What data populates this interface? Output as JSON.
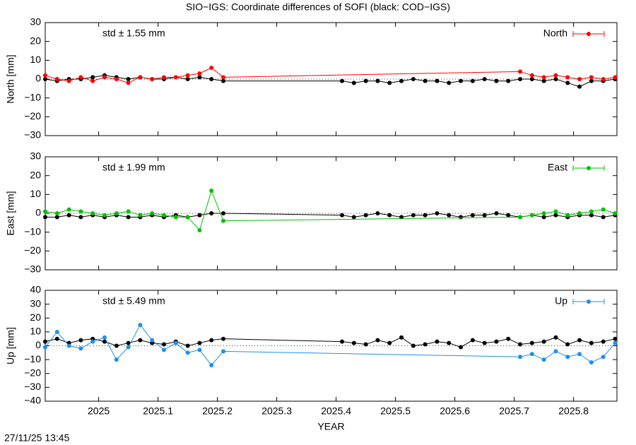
{
  "title": "SIO−IGS: Coordinate differences of SOFI (black: COD−IGS)",
  "timestamp": "27/11/25 13:45",
  "chart_data": [
    {
      "type": "line",
      "ylabel": "North [mm]",
      "annotation": "std ± 1.55 mm",
      "xlim": [
        2024.91,
        2025.873
      ],
      "xticks": [
        2025,
        2025.1,
        2025.2,
        2025.3,
        2025.4,
        2025.5,
        2025.6,
        2025.7,
        2025.8
      ],
      "ylim": [
        -30,
        30
      ],
      "yticks": [
        {
          "value": -30,
          "label": "−30"
        },
        {
          "value": -20,
          "label": "−20"
        },
        {
          "value": -10,
          "label": "−10"
        },
        0,
        10,
        20,
        30
      ],
      "series": [
        {
          "name": "North",
          "color": "#ff0000",
          "x": [
            2024.91,
            2024.93,
            2024.95,
            2024.97,
            2024.99,
            2025.01,
            2025.03,
            2025.05,
            2025.07,
            2025.09,
            2025.11,
            2025.13,
            2025.15,
            2025.17,
            2025.19,
            2025.21,
            2025.71,
            2025.73,
            2025.75,
            2025.77,
            2025.79,
            2025.81,
            2025.83,
            2025.85,
            2025.87
          ],
          "values": [
            2,
            0,
            -1,
            1,
            -1,
            1,
            0,
            -2,
            1,
            0,
            1,
            1,
            2,
            3,
            6,
            1,
            4,
            2,
            1,
            2,
            1,
            0,
            1,
            0,
            1
          ]
        },
        {
          "color": "#000000",
          "x": [
            2024.91,
            2024.93,
            2024.95,
            2024.97,
            2024.99,
            2025.01,
            2025.03,
            2025.05,
            2025.07,
            2025.09,
            2025.11,
            2025.13,
            2025.15,
            2025.17,
            2025.19,
            2025.21,
            2025.41,
            2025.43,
            2025.45,
            2025.47,
            2025.49,
            2025.51,
            2025.53,
            2025.55,
            2025.57,
            2025.59,
            2025.61,
            2025.63,
            2025.65,
            2025.67,
            2025.69,
            2025.71,
            2025.73,
            2025.75,
            2025.77,
            2025.79,
            2025.81,
            2025.83,
            2025.85,
            2025.87
          ],
          "values": [
            0,
            -1,
            0,
            0,
            1,
            2,
            1,
            0,
            1,
            0,
            0,
            1,
            0,
            1,
            0,
            -1,
            -1,
            -2,
            -1,
            -1,
            -2,
            -1,
            0,
            -1,
            -1,
            -2,
            -1,
            -1,
            0,
            -1,
            -1,
            0,
            0,
            -1,
            0,
            -2,
            -4,
            -1,
            -1,
            0
          ]
        }
      ]
    },
    {
      "type": "line",
      "ylabel": "East [mm]",
      "annotation": "std ± 1.99 mm",
      "xlim": [
        2024.91,
        2025.873
      ],
      "xticks": [
        2025,
        2025.1,
        2025.2,
        2025.3,
        2025.4,
        2025.5,
        2025.6,
        2025.7,
        2025.8
      ],
      "ylim": [
        -30,
        30
      ],
      "yticks": [
        {
          "value": -30,
          "label": "−30"
        },
        {
          "value": -20,
          "label": "−20"
        },
        {
          "value": -10,
          "label": "−10"
        },
        0,
        10,
        20,
        30
      ],
      "series": [
        {
          "name": "East",
          "color": "#00c000",
          "x": [
            2024.91,
            2024.93,
            2024.95,
            2024.97,
            2024.99,
            2025.01,
            2025.03,
            2025.05,
            2025.07,
            2025.09,
            2025.11,
            2025.13,
            2025.15,
            2025.17,
            2025.19,
            2025.21,
            2025.71,
            2025.73,
            2025.75,
            2025.77,
            2025.79,
            2025.81,
            2025.83,
            2025.85,
            2025.87
          ],
          "values": [
            1,
            0,
            2,
            1,
            0,
            -1,
            0,
            1,
            -1,
            0,
            -1,
            -2,
            -2,
            -9,
            12,
            -4,
            -2,
            -1,
            0,
            1,
            -1,
            0,
            1,
            2,
            0
          ]
        },
        {
          "color": "#000000",
          "x": [
            2024.91,
            2024.93,
            2024.95,
            2024.97,
            2024.99,
            2025.01,
            2025.03,
            2025.05,
            2025.07,
            2025.09,
            2025.11,
            2025.13,
            2025.15,
            2025.17,
            2025.19,
            2025.21,
            2025.41,
            2025.43,
            2025.45,
            2025.47,
            2025.49,
            2025.51,
            2025.53,
            2025.55,
            2025.57,
            2025.59,
            2025.61,
            2025.63,
            2025.65,
            2025.67,
            2025.69,
            2025.71,
            2025.73,
            2025.75,
            2025.77,
            2025.79,
            2025.81,
            2025.83,
            2025.85,
            2025.87
          ],
          "values": [
            -2,
            -2,
            -1,
            -2,
            -1,
            -2,
            -1,
            -2,
            -2,
            -1,
            -2,
            -1,
            -2,
            -1,
            0,
            0,
            -1,
            -2,
            -1,
            0,
            -1,
            -2,
            -1,
            -1,
            0,
            -1,
            -2,
            -1,
            -1,
            0,
            -1,
            -2,
            -1,
            -2,
            -1,
            -2,
            -1,
            -1,
            -2,
            -1
          ]
        }
      ]
    },
    {
      "type": "line",
      "ylabel": "Up [mm]",
      "annotation": "std ± 5.49 mm",
      "xlabel": "YEAR",
      "xlim": [
        2024.91,
        2025.873
      ],
      "xticks": [
        2025,
        2025.1,
        2025.2,
        2025.3,
        2025.4,
        2025.5,
        2025.6,
        2025.7,
        2025.8
      ],
      "ylim": [
        -40,
        40
      ],
      "yticks": [
        {
          "value": -40,
          "label": "−40"
        },
        {
          "value": -30,
          "label": "−30"
        },
        {
          "value": -20,
          "label": "−20"
        },
        {
          "value": -10,
          "label": "−10"
        },
        0,
        10,
        20,
        30,
        40
      ],
      "series": [
        {
          "name": "Up",
          "color": "#1e8ff0",
          "x": [
            2024.91,
            2024.93,
            2024.95,
            2024.97,
            2024.99,
            2025.01,
            2025.03,
            2025.05,
            2025.07,
            2025.09,
            2025.11,
            2025.13,
            2025.15,
            2025.17,
            2025.19,
            2025.21,
            2025.71,
            2025.73,
            2025.75,
            2025.77,
            2025.79,
            2025.81,
            2025.83,
            2025.85,
            2025.87
          ],
          "values": [
            -1,
            10,
            0,
            -2,
            3,
            6,
            -10,
            -1,
            15,
            4,
            -3,
            2,
            -5,
            -3,
            -14,
            -4,
            -8,
            -6,
            -10,
            -4,
            -8,
            -6,
            -12,
            -8,
            2
          ]
        },
        {
          "color": "#000000",
          "x": [
            2024.91,
            2024.93,
            2024.95,
            2024.97,
            2024.99,
            2025.01,
            2025.03,
            2025.05,
            2025.07,
            2025.09,
            2025.11,
            2025.13,
            2025.15,
            2025.17,
            2025.19,
            2025.21,
            2025.41,
            2025.43,
            2025.45,
            2025.47,
            2025.49,
            2025.51,
            2025.53,
            2025.55,
            2025.57,
            2025.59,
            2025.61,
            2025.63,
            2025.65,
            2025.67,
            2025.69,
            2025.71,
            2025.73,
            2025.75,
            2025.77,
            2025.79,
            2025.81,
            2025.83,
            2025.85,
            2025.87
          ],
          "values": [
            3,
            5,
            2,
            4,
            5,
            3,
            0,
            2,
            4,
            2,
            1,
            3,
            0,
            2,
            4,
            5,
            3,
            2,
            1,
            4,
            2,
            6,
            0,
            1,
            3,
            2,
            -1,
            4,
            2,
            3,
            5,
            1,
            2,
            3,
            6,
            1,
            4,
            2,
            3,
            5
          ]
        }
      ]
    }
  ]
}
